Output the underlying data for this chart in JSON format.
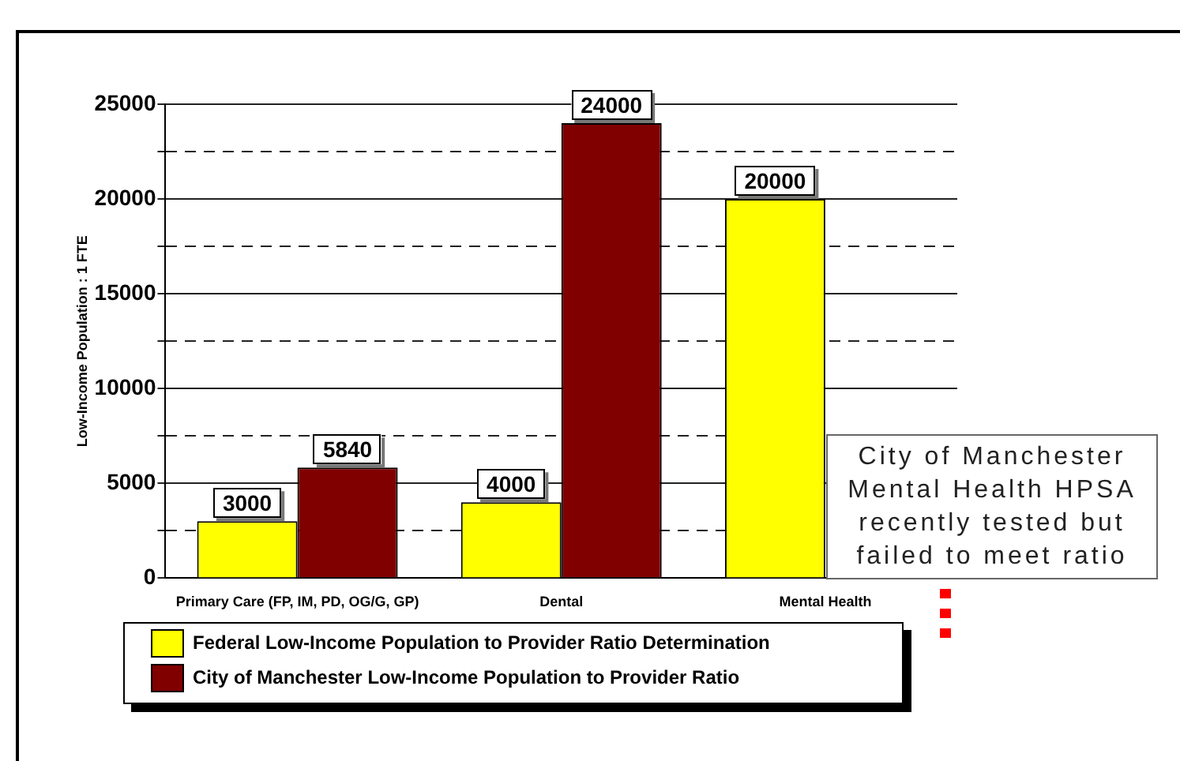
{
  "chart_data": {
    "type": "bar",
    "categories": [
      "Primary Care (FP, IM, PD, OG/G, GP)",
      "Dental",
      "Mental Health"
    ],
    "series": [
      {
        "name": "Federal Low-Income Population to Provider Ratio Determination",
        "color": "#ffff00",
        "values": [
          3000,
          4000,
          20000
        ]
      },
      {
        "name": "City of Manchester Low-Income Population to Provider Ratio",
        "color": "#800000",
        "values": [
          5840,
          24000,
          null
        ]
      }
    ],
    "ylabel": "Low-Income Population : 1 FTE",
    "ylim": [
      0,
      25000
    ],
    "yticks": [
      0,
      {
        "value": 2500,
        "label": null
      },
      5000,
      {
        "value": 7500,
        "label": null
      },
      10000,
      {
        "value": 12500,
        "label": null
      },
      15000,
      {
        "value": 17500,
        "label": null
      },
      20000,
      {
        "value": 22500,
        "label": null
      },
      25000
    ],
    "grid": "y",
    "legend": "bottom",
    "data_labels": true,
    "annotations": [
      "City of Manchester Mental Health HPSA recently tested but failed to meet ratio"
    ]
  }
}
